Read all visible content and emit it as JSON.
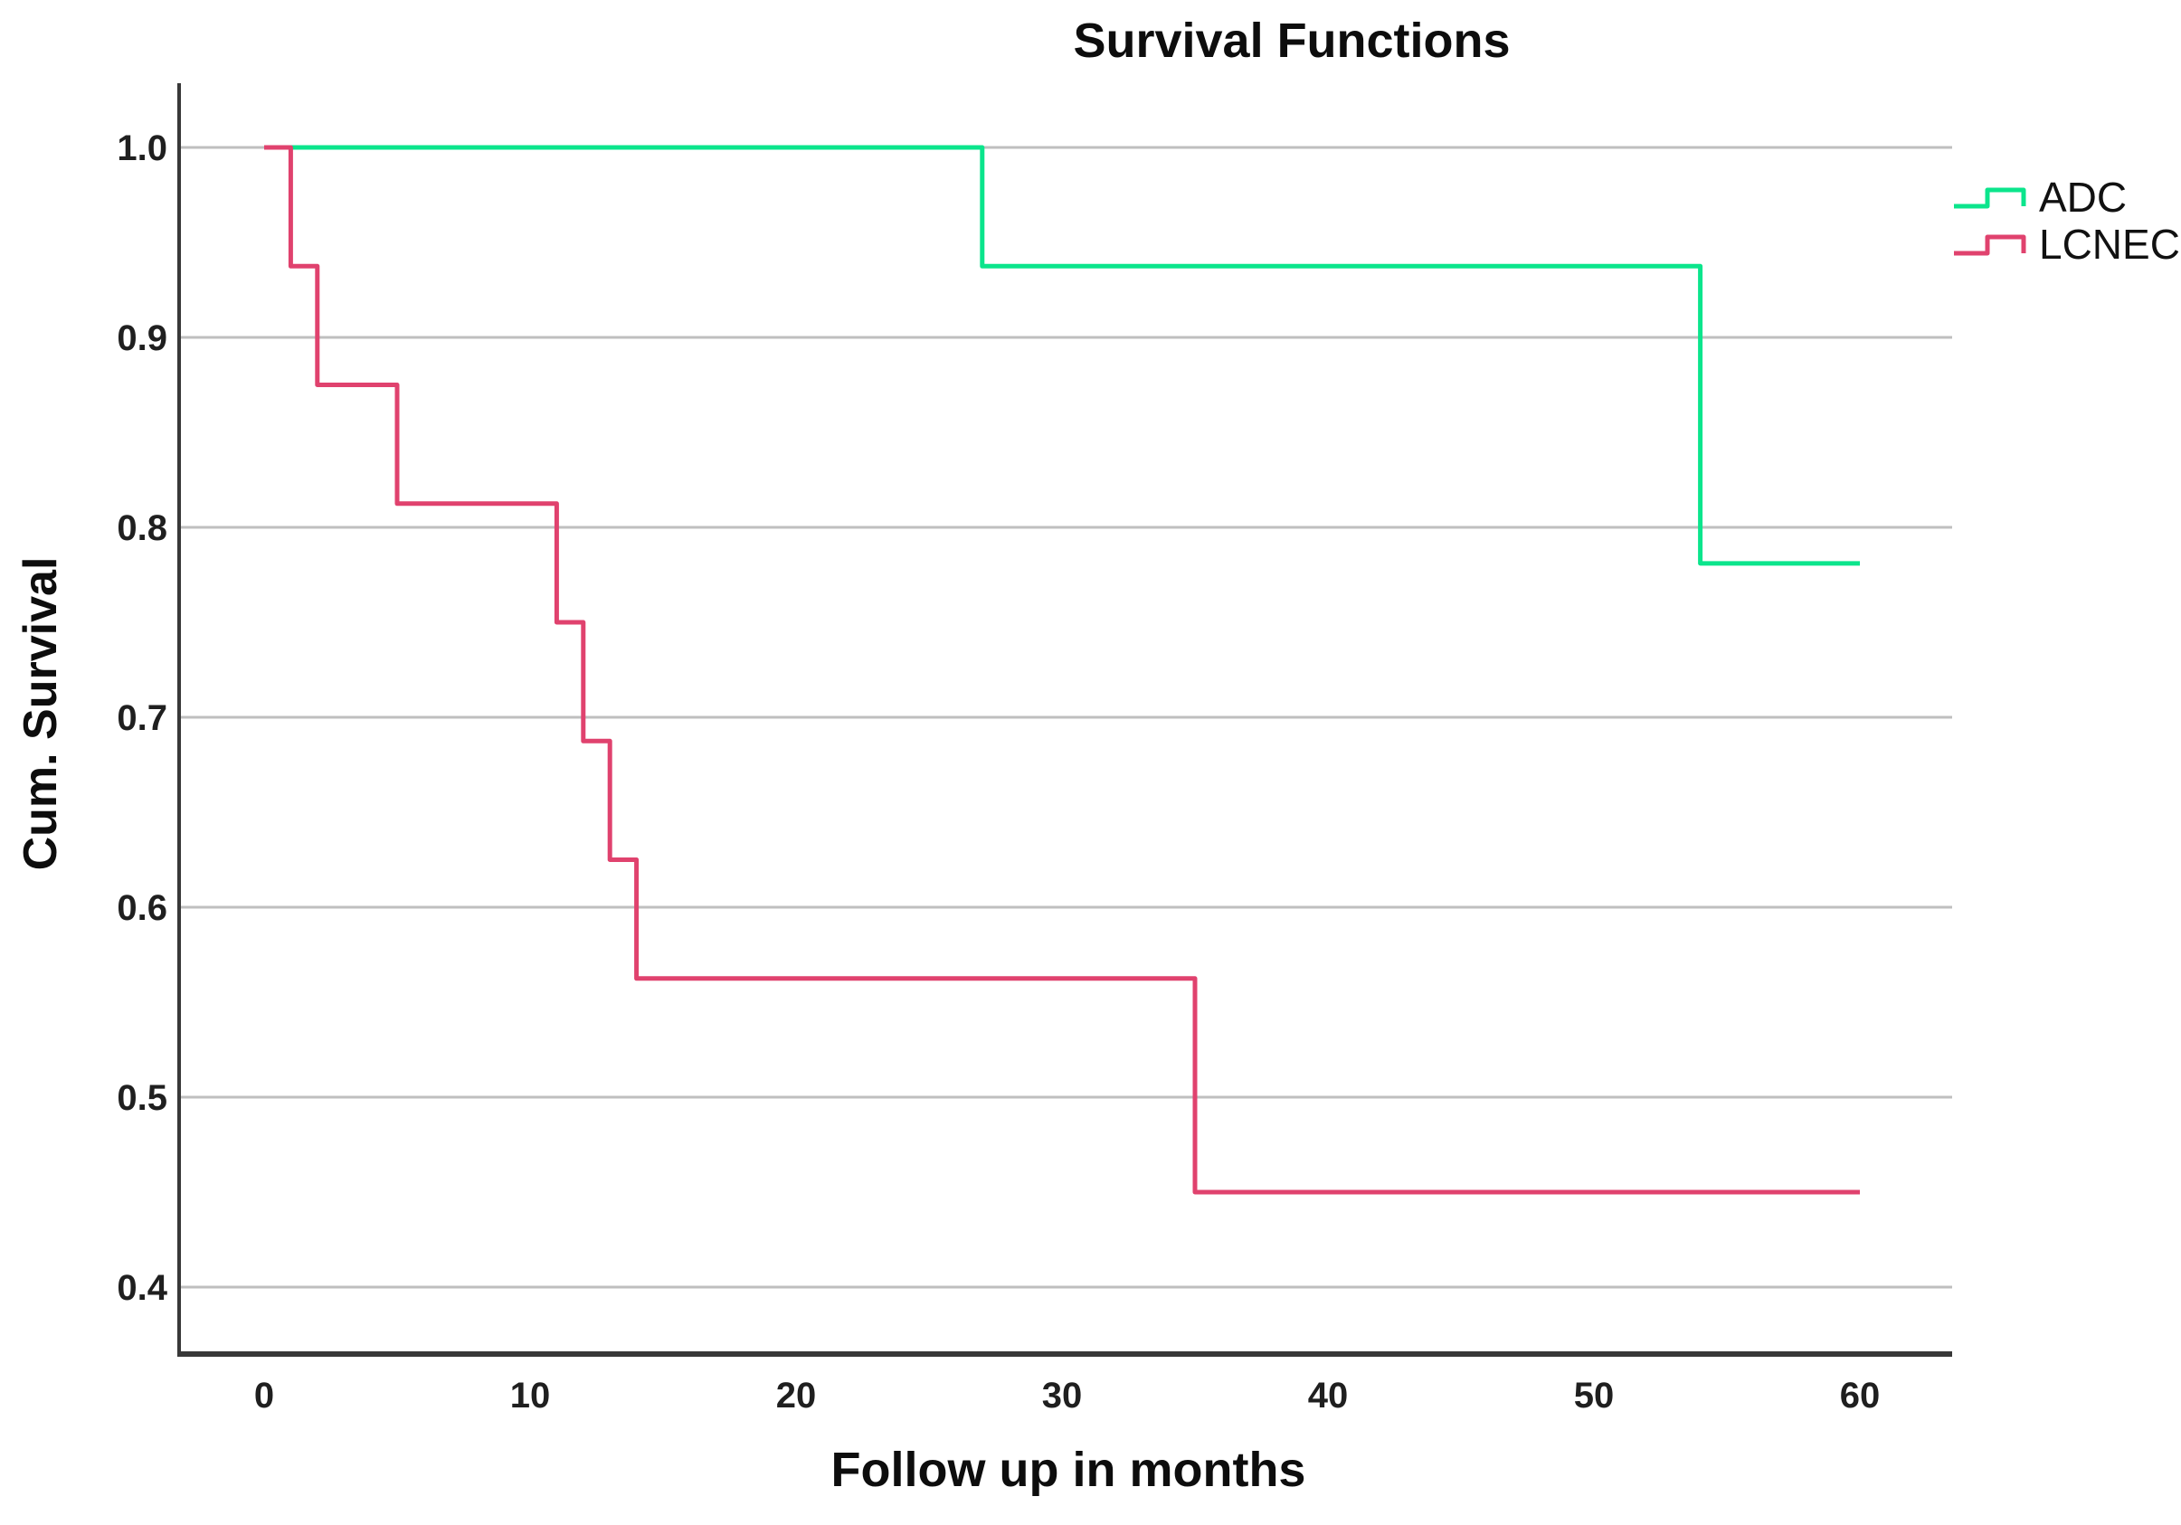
{
  "title": "Survival Functions",
  "x_axis": {
    "label": "Follow up in months",
    "ticks": [
      {
        "label": "0",
        "value": 0
      },
      {
        "label": "10",
        "value": 10
      },
      {
        "label": "20",
        "value": 20
      },
      {
        "label": "30",
        "value": 30
      },
      {
        "label": "40",
        "value": 40
      },
      {
        "label": "50",
        "value": 50
      },
      {
        "label": "60",
        "value": 60
      }
    ]
  },
  "y_axis": {
    "label": "Cum. Survival",
    "ticks": [
      {
        "label": "1.0",
        "value": 1.0
      },
      {
        "label": "0.9",
        "value": 0.9
      },
      {
        "label": "0.8",
        "value": 0.8
      },
      {
        "label": "0.7",
        "value": 0.7
      },
      {
        "label": "0.6",
        "value": 0.6
      },
      {
        "label": "0.5",
        "value": 0.5
      },
      {
        "label": "0.4",
        "value": 0.4
      }
    ]
  },
  "legend": [
    {
      "name": "ADC",
      "color": "#0BE58C"
    },
    {
      "name": "LCNEC",
      "color": "#E0426E"
    }
  ],
  "colors": {
    "grid": "#bfbfbf",
    "axis": "#383838",
    "adc_green": "#0BE58C",
    "lcnec_pink": "#E0426E"
  },
  "chart_data": {
    "type": "line",
    "subtype": "kaplan-meier-step",
    "title": "Survival Functions",
    "xlabel": "Follow up in months",
    "ylabel": "Cum. Survival",
    "xlim": [
      0,
      60
    ],
    "ylim": [
      0.4,
      1.0
    ],
    "grid": "horizontal-only",
    "legend_position": "top-right",
    "series": [
      {
        "name": "ADC",
        "color": "#0BE58C",
        "points": [
          [
            0,
            1.0
          ],
          [
            27,
            1.0
          ],
          [
            27,
            0.9375
          ],
          [
            54,
            0.9375
          ],
          [
            54,
            0.781
          ],
          [
            60,
            0.781
          ]
        ]
      },
      {
        "name": "LCNEC",
        "color": "#E0426E",
        "points": [
          [
            0,
            1.0
          ],
          [
            1,
            1.0
          ],
          [
            1,
            0.9375
          ],
          [
            2,
            0.9375
          ],
          [
            2,
            0.875
          ],
          [
            5,
            0.875
          ],
          [
            5,
            0.8125
          ],
          [
            11,
            0.8125
          ],
          [
            11,
            0.75
          ],
          [
            12,
            0.75
          ],
          [
            12,
            0.6875
          ],
          [
            13,
            0.6875
          ],
          [
            13,
            0.625
          ],
          [
            14,
            0.625
          ],
          [
            14,
            0.5625
          ],
          [
            35,
            0.5625
          ],
          [
            35,
            0.45
          ],
          [
            60,
            0.45
          ]
        ]
      }
    ]
  }
}
